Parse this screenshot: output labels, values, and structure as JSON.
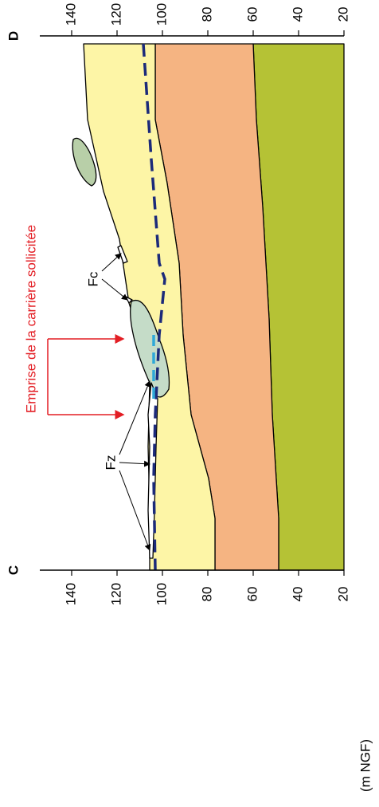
{
  "labels": {
    "start": "C",
    "end": "D"
  },
  "axis": {
    "left_ticks": [
      140,
      120,
      100,
      80,
      60,
      40,
      20
    ],
    "right_ticks": [
      140,
      120,
      100,
      80,
      60,
      40,
      20
    ],
    "unit": "(m NGF)"
  },
  "annotations": {
    "emprise": "Emprise de la carrière sollicitée",
    "fc": "Fc",
    "fz": "Fz"
  }
}
